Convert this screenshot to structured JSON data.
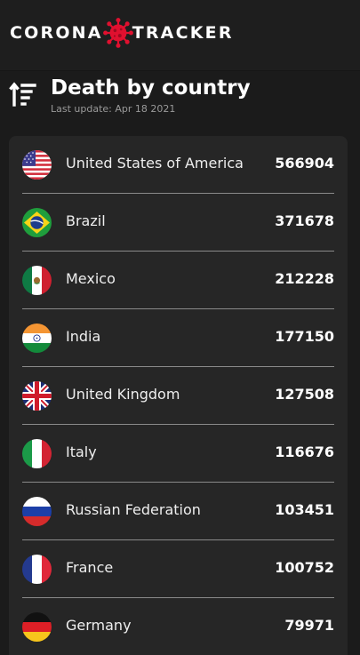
{
  "app": {
    "logo_left": "CORONA",
    "logo_right": "TRACKER",
    "logo_icon": "virus-icon",
    "accent_color": "#e0102f"
  },
  "header": {
    "title": "Death by country",
    "last_update": "Last update: Apr 18 2021",
    "sort_icon": "sort-descending-icon"
  },
  "countries": [
    {
      "name": "United States of America",
      "deaths": "566904",
      "flag": "usa-flag-icon"
    },
    {
      "name": "Brazil",
      "deaths": "371678",
      "flag": "brazil-flag-icon"
    },
    {
      "name": "Mexico",
      "deaths": "212228",
      "flag": "mexico-flag-icon"
    },
    {
      "name": "India",
      "deaths": "177150",
      "flag": "india-flag-icon"
    },
    {
      "name": "United Kingdom",
      "deaths": "127508",
      "flag": "uk-flag-icon"
    },
    {
      "name": "Italy",
      "deaths": "116676",
      "flag": "italy-flag-icon"
    },
    {
      "name": "Russian Federation",
      "deaths": "103451",
      "flag": "russia-flag-icon"
    },
    {
      "name": "France",
      "deaths": "100752",
      "flag": "france-flag-icon"
    },
    {
      "name": "Germany",
      "deaths": "79971",
      "flag": "germany-flag-icon"
    }
  ]
}
